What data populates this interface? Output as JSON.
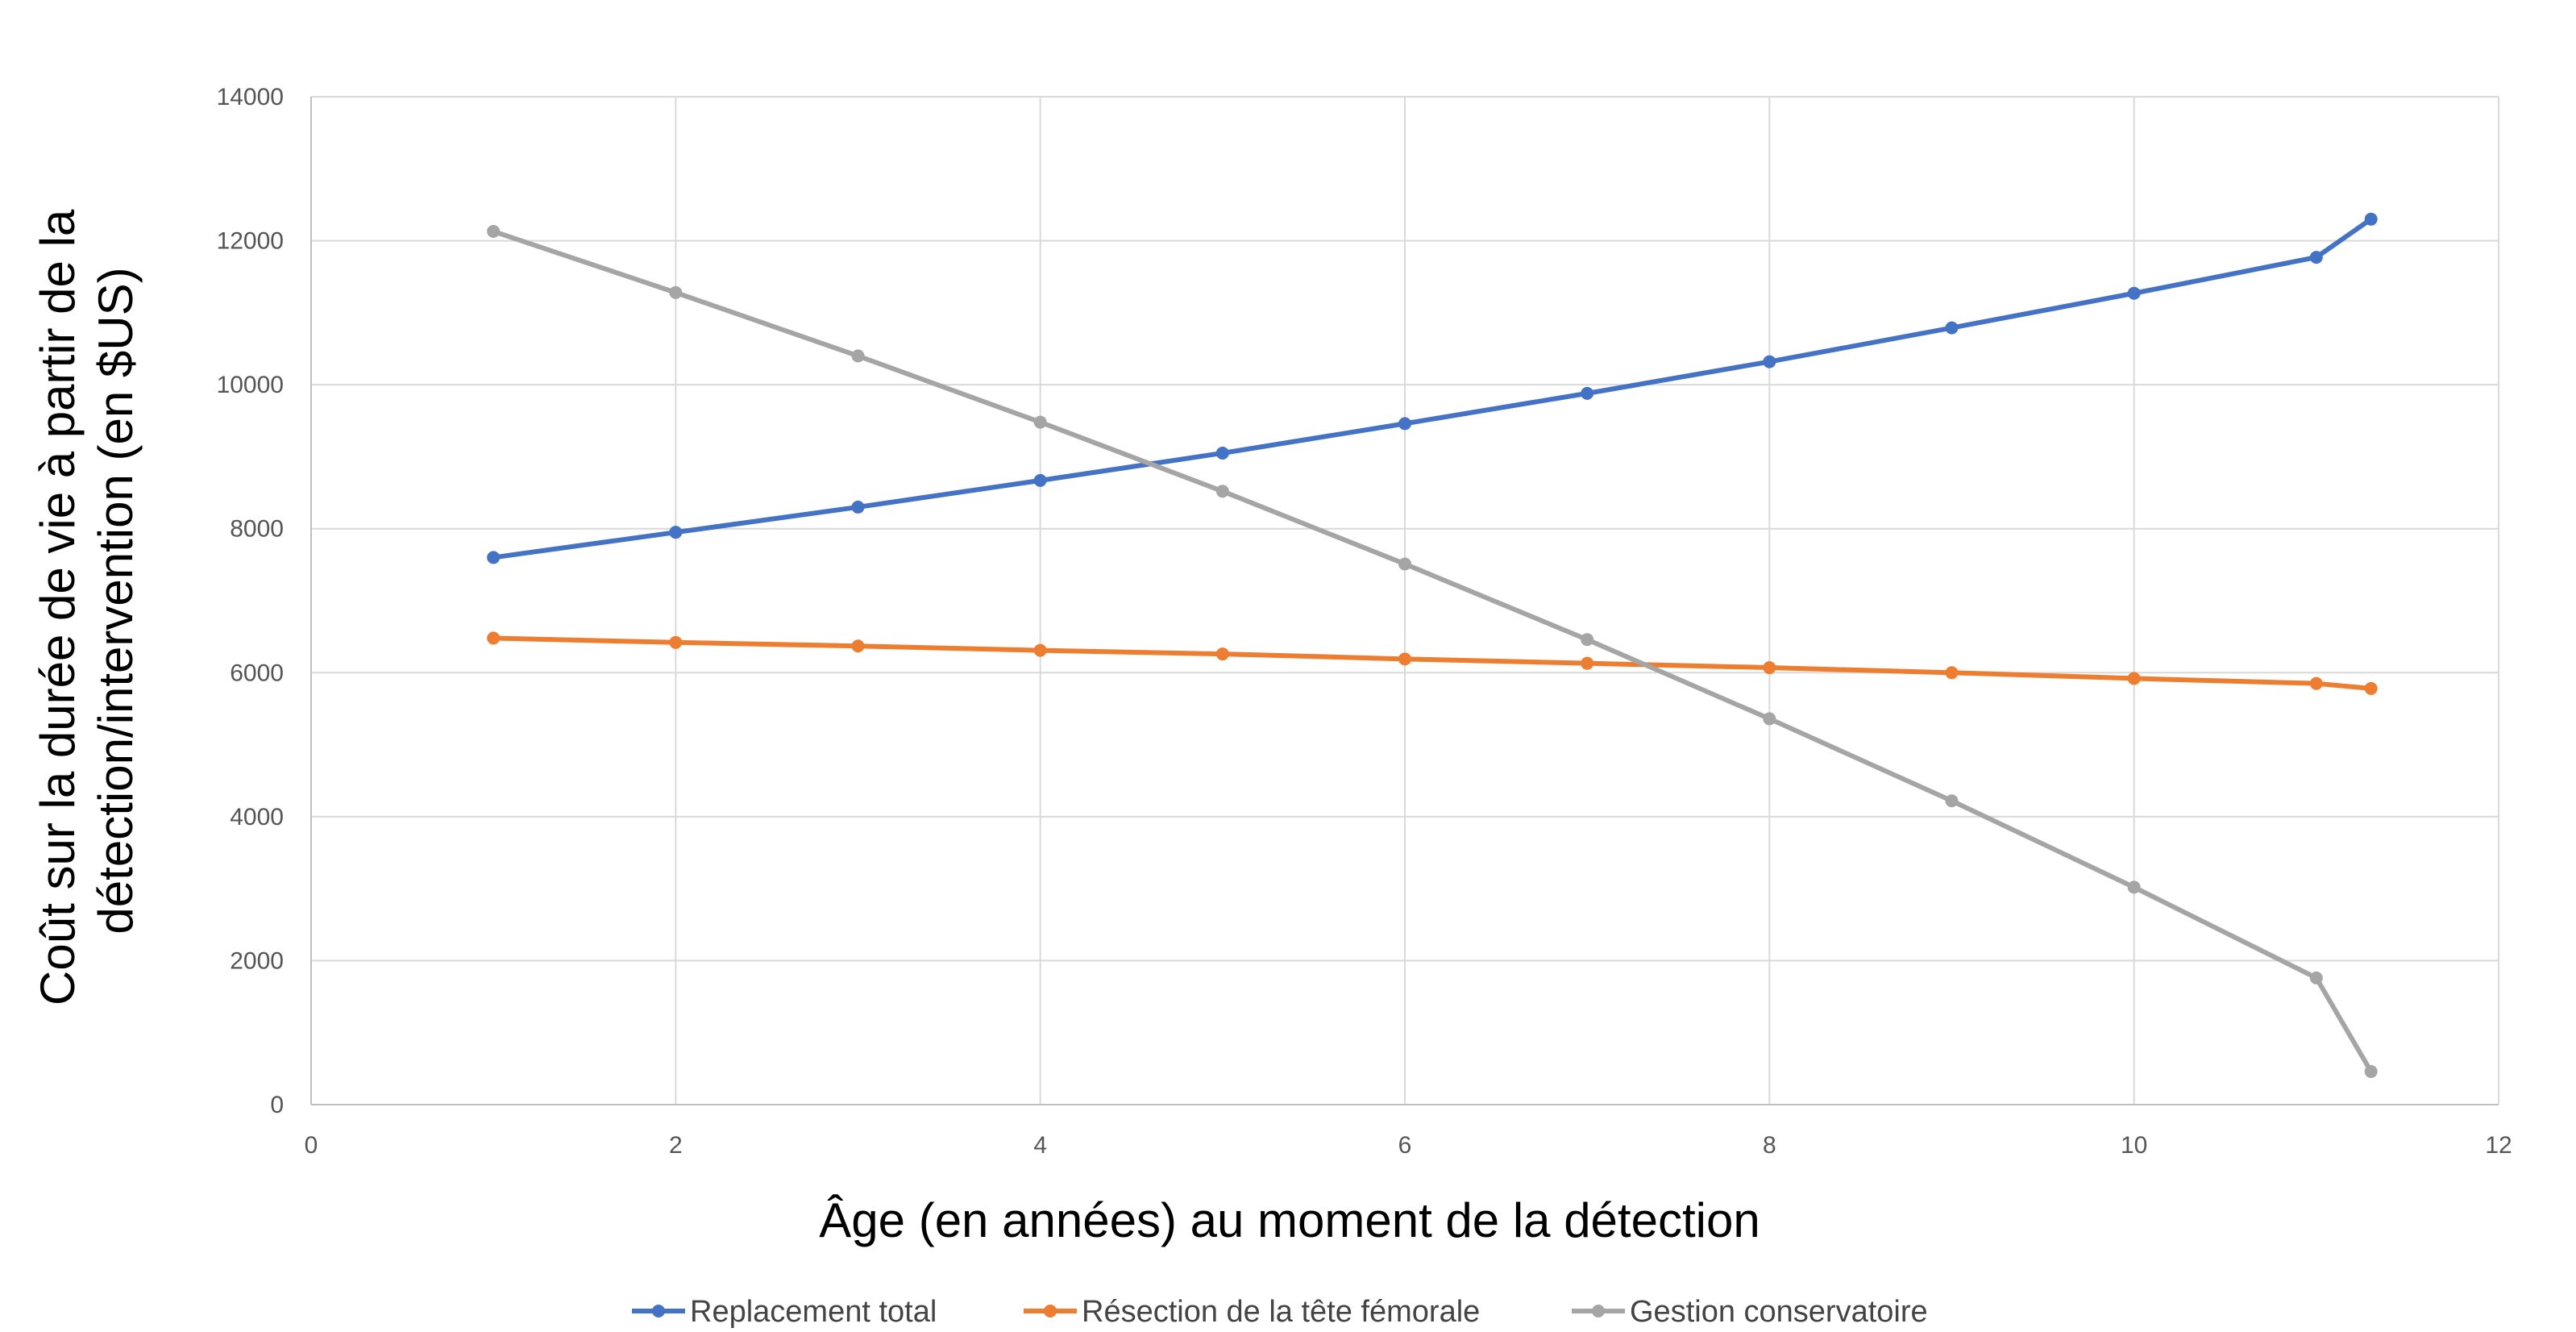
{
  "chart_data": {
    "type": "line",
    "title": "",
    "xlabel": "Âge (en années) au moment de la détection",
    "ylabel_lines": [
      "Coût sur la durée de vie à partir de la",
      "détection/intervention (en $US)"
    ],
    "xlim": [
      0,
      12
    ],
    "ylim": [
      0,
      14000
    ],
    "x_ticks": [
      "0",
      "2",
      "4",
      "6",
      "8",
      "10",
      "12"
    ],
    "y_ticks": [
      "0",
      "2000",
      "4000",
      "6000",
      "8000",
      "10000",
      "12000",
      "14000"
    ],
    "grid": true,
    "legend_position": "bottom",
    "x": [
      1,
      2,
      3,
      4,
      5,
      6,
      7,
      8,
      9,
      10,
      11,
      11.3
    ],
    "series": [
      {
        "name": "Replacement total",
        "color": "#4472C4",
        "values": [
          7600,
          7950,
          8300,
          8670,
          9050,
          9460,
          9880,
          10320,
          10790,
          11270,
          11770,
          12300
        ]
      },
      {
        "name": "Résection de la tête fémorale",
        "color": "#ED7D31",
        "values": [
          6480,
          6420,
          6370,
          6310,
          6260,
          6190,
          6130,
          6070,
          6000,
          5920,
          5850,
          5780
        ]
      },
      {
        "name": "Gestion conservatoire",
        "color": "#A5A5A5",
        "values": [
          12130,
          11280,
          10400,
          9480,
          8520,
          7510,
          6460,
          5360,
          4220,
          3020,
          1760,
          460
        ]
      }
    ]
  }
}
